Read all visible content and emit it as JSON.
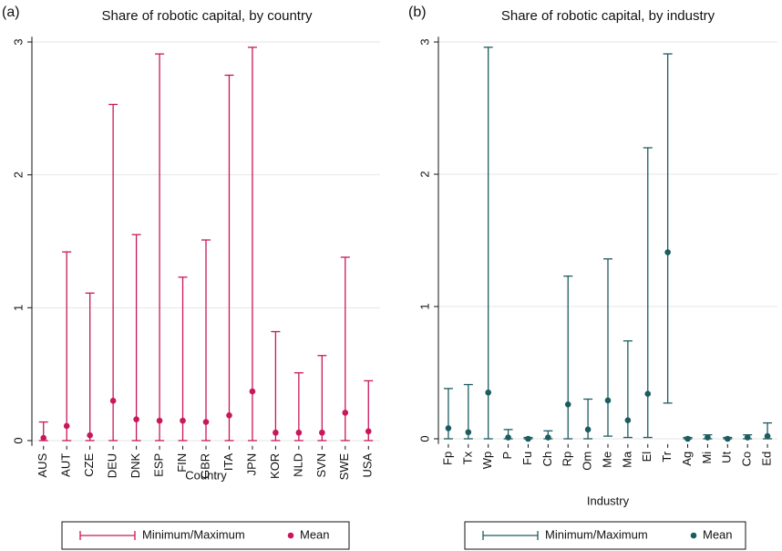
{
  "chart_data": [
    {
      "type": "range-dot",
      "panel_label": "(a)",
      "title": "Share of robotic capital, by country",
      "x_label": "Country",
      "categories": [
        "AUS",
        "AUT",
        "CZE",
        "DEU",
        "DNK",
        "ESP",
        "FIN",
        "GBR",
        "ITA",
        "JPN",
        "KOR",
        "NLD",
        "SVN",
        "SWE",
        "USA"
      ],
      "series": [
        {
          "name": "Minimum/Maximum",
          "color": "#c8175a",
          "min": [
            0,
            0,
            0,
            0,
            0,
            0,
            0,
            0,
            0,
            0,
            0,
            0,
            0,
            0,
            0
          ],
          "max": [
            0.14,
            1.42,
            1.11,
            2.53,
            1.55,
            2.91,
            1.23,
            1.51,
            2.75,
            2.96,
            0.82,
            0.51,
            0.64,
            1.38,
            0.45
          ]
        },
        {
          "name": "Mean",
          "color": "#c8175a",
          "values": [
            0.02,
            0.11,
            0.04,
            0.3,
            0.16,
            0.15,
            0.15,
            0.14,
            0.19,
            0.37,
            0.06,
            0.06,
            0.06,
            0.21,
            0.07
          ]
        }
      ],
      "ylim": [
        -0.04,
        3.04
      ],
      "yticks": [
        0,
        1,
        2,
        3
      ],
      "grid": true
    },
    {
      "type": "range-dot",
      "panel_label": "(b)",
      "title": "Share of robotic capital, by industry",
      "x_label": "Industry",
      "categories": [
        "Fp",
        "Tx",
        "Wp",
        "P",
        "Fu",
        "Ch",
        "Rp",
        "Om",
        "Me",
        "Ma",
        "El",
        "Tr",
        "Ag",
        "Mi",
        "Ut",
        "Co",
        "Ed"
      ],
      "series": [
        {
          "name": "Minimum/Maximum",
          "color": "#1b5c61",
          "min": [
            0,
            0,
            0,
            0,
            0,
            0,
            0,
            0,
            0.02,
            0.01,
            0.01,
            0.27,
            0,
            0,
            0,
            0,
            0
          ],
          "max": [
            0.38,
            0.41,
            2.96,
            0.07,
            0.01,
            0.06,
            1.23,
            0.3,
            1.36,
            0.74,
            2.2,
            2.91,
            0.01,
            0.03,
            0.01,
            0.03,
            0.12
          ]
        },
        {
          "name": "Mean",
          "color": "#1b5c61",
          "values": [
            0.08,
            0.05,
            0.35,
            0.01,
            0,
            0.01,
            0.26,
            0.07,
            0.29,
            0.14,
            0.34,
            1.41,
            0,
            0.01,
            0,
            0.01,
            0.02
          ]
        }
      ],
      "ylim": [
        -0.04,
        3.04
      ],
      "yticks": [
        0,
        1,
        2,
        3
      ],
      "grid": true
    }
  ]
}
